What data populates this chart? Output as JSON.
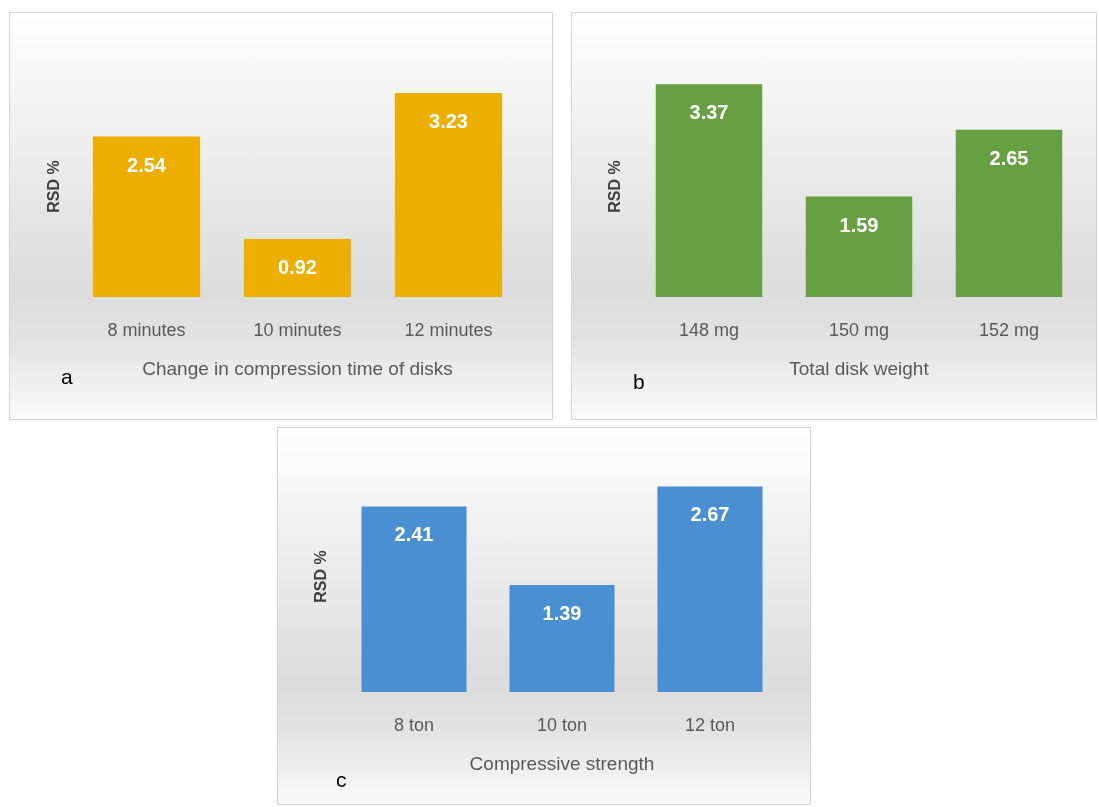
{
  "chart_data": [
    {
      "type": "bar",
      "categories": [
        "8 minutes",
        "10 minutes",
        "12 minutes"
      ],
      "values": [
        2.54,
        0.92,
        3.23
      ],
      "color": "#ecae00",
      "xlabel": "Change in compression time of disks",
      "ylabel": "RSD %",
      "annotations": [
        "a"
      ],
      "data_labels": true
    },
    {
      "type": "bar",
      "categories": [
        "148 mg",
        "150 mg",
        "152 mg"
      ],
      "values": [
        3.37,
        1.59,
        2.65
      ],
      "color": "#66a042",
      "xlabel": "Total disk weight",
      "ylabel": "RSD %",
      "annotations": [
        "b"
      ],
      "data_labels": true
    },
    {
      "type": "bar",
      "categories": [
        "8 ton",
        "10 ton",
        "12 ton"
      ],
      "values": [
        2.41,
        1.39,
        2.67
      ],
      "color": "#4a8fd2",
      "xlabel": "Compressive strength",
      "ylabel": "RSD %",
      "annotations": [
        "c"
      ],
      "data_labels": true
    }
  ]
}
